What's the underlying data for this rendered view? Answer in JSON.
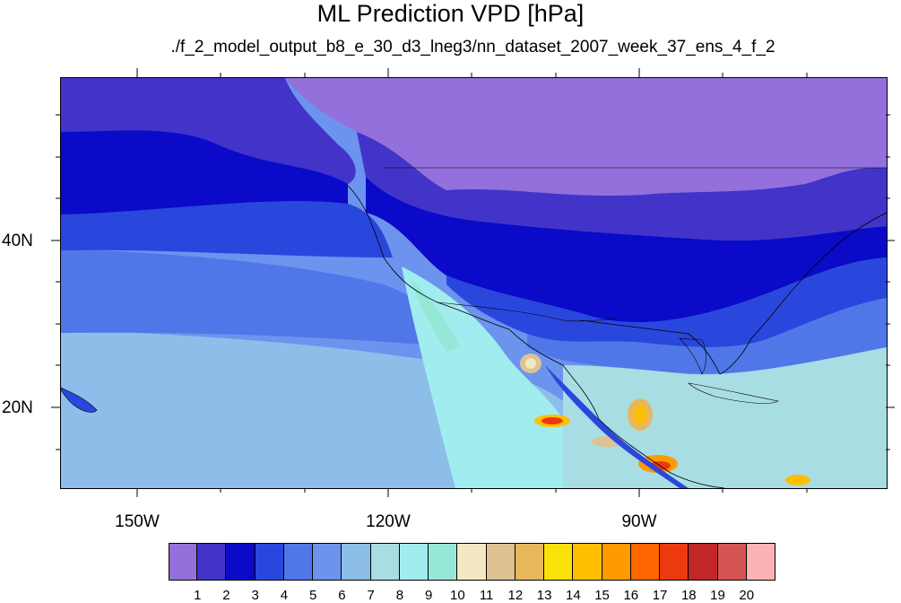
{
  "title": "ML Prediction VPD [hPa]",
  "subtitle": "./f_2_model_output_b8_e_30_d3_lneg3/nn_dataset_2007_week_37_ens_4_f_2",
  "lat_labels": [
    "40N",
    "20N"
  ],
  "lon_labels": [
    "150W",
    "120W",
    "90W"
  ],
  "colorbar": {
    "levels": [
      "1",
      "2",
      "3",
      "4",
      "5",
      "6",
      "7",
      "8",
      "9",
      "10",
      "11",
      "12",
      "13",
      "14",
      "15",
      "16",
      "17",
      "18",
      "19",
      "20"
    ],
    "colors": [
      "#9370db",
      "#4233c9",
      "#0a0ac8",
      "#2a47dd",
      "#4f77e8",
      "#6c93ee",
      "#8dbde9",
      "#a8dde3",
      "#a0ecef",
      "#96e8d6",
      "#f4e8c2",
      "#dfc291",
      "#e6b85b",
      "#fbe00a",
      "#ffbf00",
      "#ff9a00",
      "#ff6600",
      "#ec3a10",
      "#c22626",
      "#d45454",
      "#fcb3b3"
    ]
  },
  "chart_data": {
    "type": "heatmap",
    "title": "ML Prediction VPD [hPa]",
    "subtitle": "./f_2_model_output_b8_e_30_d3_lneg3/nn_dataset_2007_week_37_ens_4_f_2",
    "variable": "VPD",
    "units": "hPa",
    "x_ticks": [
      "150W",
      "120W",
      "90W"
    ],
    "y_ticks": [
      "40N",
      "20N"
    ],
    "color_levels": [
      1,
      2,
      3,
      4,
      5,
      6,
      7,
      8,
      9,
      10,
      11,
      12,
      13,
      14,
      15,
      16,
      17,
      18,
      19,
      20
    ],
    "grid": false
  }
}
